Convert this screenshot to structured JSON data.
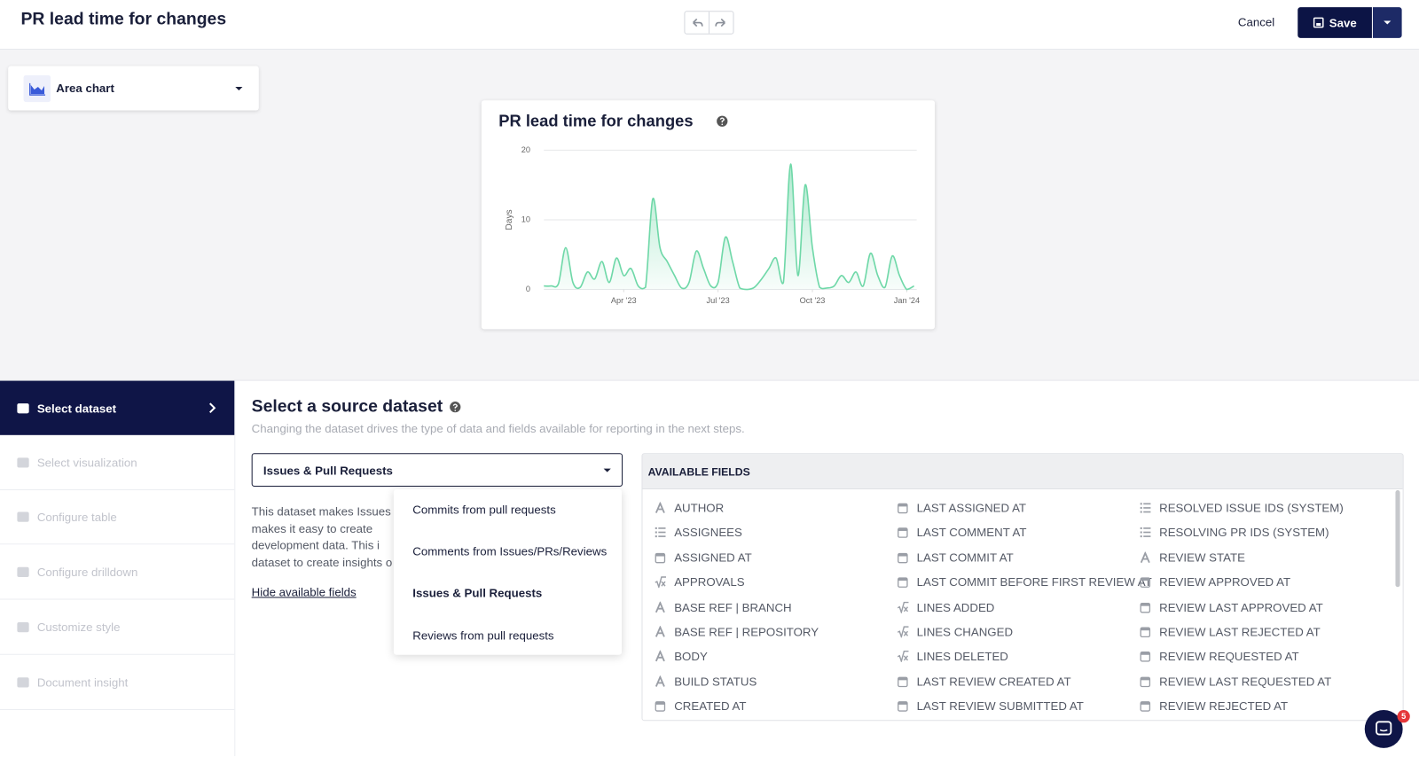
{
  "header": {
    "title": "PR lead time for changes",
    "cancel": "Cancel",
    "save": "Save"
  },
  "chart_picker": {
    "label": "Area chart"
  },
  "chart_data": {
    "type": "area",
    "title": "PR lead time for changes",
    "y_label": "Days",
    "x": [
      0,
      1,
      2,
      3,
      4,
      5,
      6,
      7,
      8,
      9,
      10,
      11,
      12,
      13,
      14,
      15,
      16,
      17,
      18,
      19,
      20,
      21,
      22,
      23,
      24,
      25,
      26,
      27,
      28,
      29,
      30,
      31,
      32,
      33,
      34,
      35,
      36,
      37,
      38,
      39,
      40,
      41,
      42,
      43,
      44,
      45,
      46,
      47,
      48,
      49,
      50,
      51
    ],
    "values": [
      0.5,
      0.5,
      0.8,
      6,
      1,
      0.3,
      2.5,
      1.5,
      4,
      1,
      4.5,
      2,
      3,
      0.5,
      0.3,
      13,
      6,
      4,
      2,
      0.2,
      1,
      5.5,
      3,
      0.5,
      1,
      7.5,
      4,
      0.2,
      0,
      0.3,
      1.5,
      3,
      4.5,
      1,
      18,
      2,
      15,
      6,
      0.3,
      0.2,
      0.5,
      2,
      1,
      2.5,
      0.5,
      5.2,
      2,
      0.3,
      4.8,
      2,
      0,
      0.5
    ],
    "color": "#6fd8a8",
    "xlim": [
      0,
      51
    ],
    "xticks": [
      {
        "value": 11,
        "label": "Apr '23"
      },
      {
        "value": 24,
        "label": "Jul '23"
      },
      {
        "value": 37,
        "label": "Oct '23"
      },
      {
        "value": 50,
        "label": "Jan '24"
      }
    ],
    "ylim": [
      0,
      20
    ],
    "yticks": [
      0,
      10,
      20
    ],
    "grid": true
  },
  "steps": [
    "Select dataset",
    "Select visualization",
    "Configure table",
    "Configure drilldown",
    "Customize style",
    "Document insight"
  ],
  "dataset": {
    "title": "Select a source dataset",
    "subtitle": "Changing the dataset drives the type of data and fields available for reporting in the next steps.",
    "selected": "Issues & Pull Requests",
    "options": [
      "Commits from pull requests",
      "Comments from Issues/PRs/Reviews",
      "Issues & Pull Requests",
      "Reviews from pull requests"
    ],
    "description": [
      "This dataset makes Issues",
      "makes it easy to create",
      "development data. This i",
      "dataset to create insights o"
    ],
    "toggle": "Hide available fields"
  },
  "fields": {
    "title": "AVAILABLE FIELDS",
    "columns": [
      [
        {
          "name": "AUTHOR",
          "icon": "text"
        },
        {
          "name": "ASSIGNEES",
          "icon": "list"
        },
        {
          "name": "ASSIGNED AT",
          "icon": "date"
        },
        {
          "name": "APPROVALS",
          "icon": "number"
        },
        {
          "name": "BASE REF | BRANCH",
          "icon": "text"
        },
        {
          "name": "BASE REF | REPOSITORY",
          "icon": "text"
        },
        {
          "name": "BODY",
          "icon": "text"
        },
        {
          "name": "BUILD STATUS",
          "icon": "text"
        },
        {
          "name": "CREATED AT",
          "icon": "date"
        }
      ],
      [
        {
          "name": "LAST ASSIGNED AT",
          "icon": "date"
        },
        {
          "name": "LAST COMMENT AT",
          "icon": "date"
        },
        {
          "name": "LAST COMMIT AT",
          "icon": "date"
        },
        {
          "name": "LAST COMMIT BEFORE FIRST REVIEW AT",
          "icon": "date"
        },
        {
          "name": "LINES ADDED",
          "icon": "number"
        },
        {
          "name": "LINES CHANGED",
          "icon": "number"
        },
        {
          "name": "LINES DELETED",
          "icon": "number"
        },
        {
          "name": "LAST REVIEW CREATED AT",
          "icon": "date"
        },
        {
          "name": "LAST REVIEW SUBMITTED AT",
          "icon": "date"
        }
      ],
      [
        {
          "name": "RESOLVED ISSUE IDS (SYSTEM)",
          "icon": "list"
        },
        {
          "name": "RESOLVING PR IDS (SYSTEM)",
          "icon": "list"
        },
        {
          "name": "REVIEW STATE",
          "icon": "text"
        },
        {
          "name": "REVIEW APPROVED AT",
          "icon": "date"
        },
        {
          "name": "REVIEW LAST APPROVED AT",
          "icon": "date"
        },
        {
          "name": "REVIEW LAST REJECTED AT",
          "icon": "date"
        },
        {
          "name": "REVIEW REQUESTED AT",
          "icon": "date"
        },
        {
          "name": "REVIEW LAST REQUESTED AT",
          "icon": "date"
        },
        {
          "name": "REVIEW REJECTED AT",
          "icon": "date"
        }
      ]
    ]
  },
  "notifications": {
    "count": 5
  }
}
